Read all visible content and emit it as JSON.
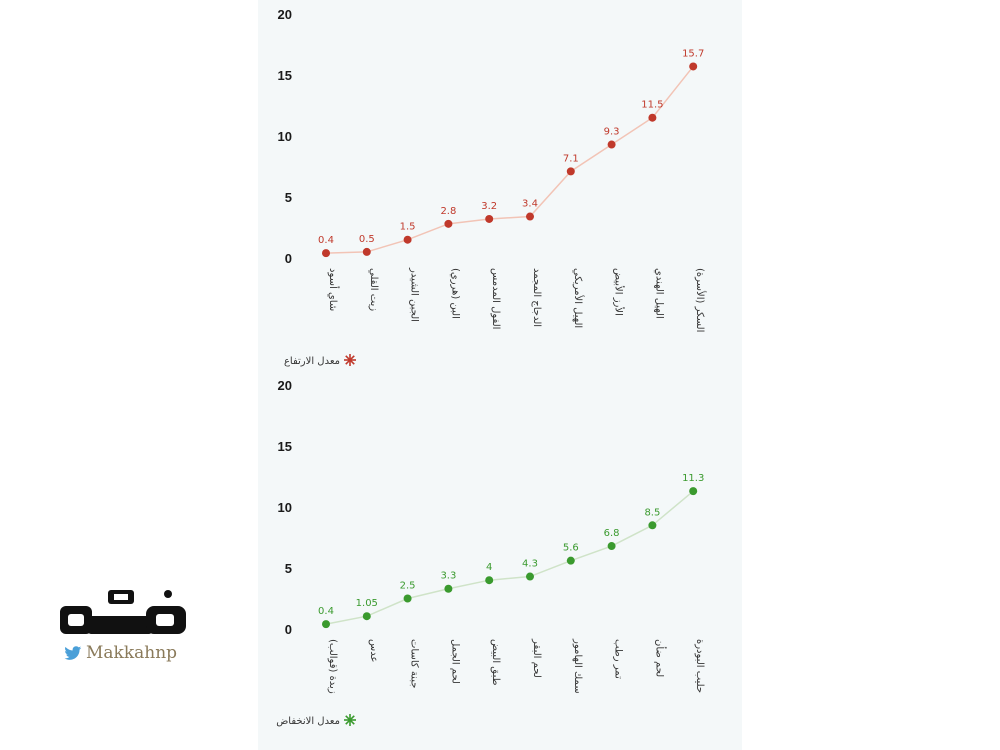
{
  "chart_data": [
    {
      "type": "line",
      "legend": "معدل الارتفاع",
      "legend_position": "bottom-left",
      "color": "#c0392b",
      "line_color": "#f2c4b6",
      "ylim": [
        0,
        20
      ],
      "yticks": [
        "0",
        "5",
        "10",
        "15",
        "20"
      ],
      "categories": [
        "شاي أسود",
        "زيت القلي",
        "الجبن الشيدر",
        "البن (هرري)",
        "الفول المدمس",
        "الدجاج المجمد",
        "الهيل الأمريكي",
        "الأرز الأبيض",
        "الهيل الهندي",
        "السكر (الأسرة)"
      ],
      "values": [
        0.4,
        0.5,
        1.5,
        2.8,
        3.2,
        3.4,
        7.1,
        9.3,
        11.5,
        15.7
      ],
      "value_labels": [
        "0.4",
        "0.5",
        "1.5",
        "2.8",
        "3.2",
        "3.4",
        "7.1",
        "9.3",
        "11.5",
        "15.7"
      ]
    },
    {
      "type": "line",
      "legend": "معدل الانخفاض",
      "legend_position": "bottom-left",
      "color": "#3a9a2e",
      "line_color": "#cfe3c8",
      "ylim": [
        0,
        20
      ],
      "yticks": [
        "0",
        "5",
        "10",
        "15",
        "20"
      ],
      "categories": [
        "زبدة (قوالب)",
        "عدس",
        "جبنة كاسات",
        "لحم الجمل",
        "طبق البيض",
        "لحم البقر",
        "سمك الهامور",
        "تمر رطب",
        "لحم ضأن",
        "حليب البودرة"
      ],
      "values": [
        0.4,
        1.05,
        2.5,
        3.3,
        4,
        4.3,
        5.6,
        6.8,
        8.5,
        11.3
      ],
      "value_labels": [
        "0.4",
        "1.05",
        "2.5",
        "3.3",
        "4",
        "4.3",
        "5.6",
        "6.8",
        "8.5",
        "11.3"
      ]
    }
  ],
  "brand": {
    "handle": "Makkahnp",
    "logo_alt": "مكة",
    "colors": {
      "logo": "#111111",
      "handle": "#8a7a5a",
      "bird": "#4a9fd8"
    }
  }
}
